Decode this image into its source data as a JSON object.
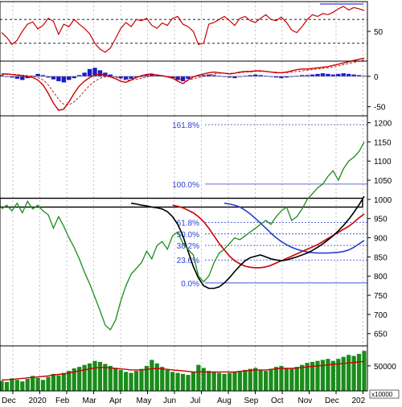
{
  "chart_data": {
    "type": "line",
    "x_labels": [
      "Dec",
      "2020",
      "Feb",
      "Mar",
      "Apr",
      "May",
      "Jun",
      "Jul",
      "Aug",
      "Sep",
      "Oct",
      "Nov",
      "Dec",
      "202"
    ],
    "panels": {
      "rsi": {
        "ticks": [
          50
        ],
        "ylim": [
          0,
          100
        ],
        "levels": [
          30,
          70
        ],
        "series": [
          {
            "values": [
              48,
              40,
              28,
              35,
              50,
              62,
              66,
              54,
              60,
              72,
              67,
              45,
              62,
              58,
              70,
              62,
              55,
              46,
              30,
              20,
              15,
              22,
              38,
              55,
              65,
              58,
              70,
              68,
              72,
              60,
              55,
              64,
              60,
              72,
              75,
              62,
              58,
              50,
              28,
              30,
              62,
              65,
              70,
              75,
              68,
              60,
              72,
              75,
              68,
              65,
              72,
              78,
              70,
              68,
              74,
              65,
              52,
              48,
              58,
              70,
              78,
              75,
              80,
              78,
              82,
              88,
              92,
              86,
              90,
              88,
              85
            ],
            "color": "#cc0000"
          }
        ],
        "upper_line_color": "#2a3fd0"
      },
      "macd": {
        "ticks": [
          0,
          -50
        ],
        "ylim": [
          -65,
          25
        ],
        "histogram": [
          2,
          0,
          -2,
          -4,
          -6,
          -3,
          1,
          4,
          2,
          -2,
          -5,
          -8,
          -10,
          -6,
          -3,
          2,
          6,
          12,
          14,
          10,
          6,
          3,
          -1,
          -3,
          -5,
          -4,
          -2,
          0,
          2,
          4,
          3,
          1,
          -1,
          -3,
          -6,
          -8,
          -4,
          -1,
          1,
          2,
          3,
          2,
          1,
          0,
          -2,
          -3,
          -1,
          1,
          2,
          3,
          2,
          1,
          -1,
          -2,
          -3,
          -2,
          -1,
          1,
          2,
          2,
          3,
          4,
          5,
          4,
          3,
          4,
          5,
          4,
          3,
          2,
          1
        ],
        "macd_line": [
          4,
          4,
          3,
          2,
          1,
          0,
          -2,
          -6,
          -14,
          -28,
          -44,
          -56,
          -54,
          -42,
          -28,
          -16,
          -8,
          -2,
          2,
          4,
          2,
          -1,
          -4,
          -8,
          -10,
          -6,
          -2,
          1,
          3,
          4,
          2,
          1,
          -1,
          -3,
          -8,
          -12,
          -6,
          -1,
          2,
          4,
          6,
          7,
          6,
          5,
          4,
          5,
          7,
          8,
          8,
          9,
          9,
          8,
          7,
          6,
          6,
          7,
          9,
          11,
          12,
          12,
          13,
          14,
          15,
          16,
          18,
          20,
          22,
          24,
          26,
          28,
          30
        ],
        "signal_line": [
          3,
          3,
          3,
          3,
          2,
          1,
          0,
          -2,
          -6,
          -14,
          -26,
          -38,
          -46,
          -47,
          -42,
          -34,
          -24,
          -15,
          -8,
          -3,
          -1,
          -1,
          -2,
          -4,
          -6,
          -6,
          -5,
          -3,
          -1,
          1,
          1,
          1,
          0,
          -1,
          -3,
          -6,
          -6,
          -4,
          -2,
          0,
          2,
          4,
          5,
          5,
          5,
          5,
          6,
          7,
          7,
          8,
          8,
          8,
          7,
          7,
          6,
          6,
          7,
          8,
          9,
          10,
          11,
          12,
          13,
          14,
          15,
          17,
          19,
          21,
          23,
          25,
          27
        ],
        "line_color": "#cc0000",
        "hist_color": "#1a1acc"
      },
      "price": {
        "ticks": [
          1200,
          1150,
          1100,
          1050,
          1000,
          950,
          900,
          850,
          800,
          750,
          700,
          650
        ],
        "ylim": [
          618,
          1218
        ],
        "close": [
          975,
          985,
          970,
          990,
          965,
          995,
          975,
          985,
          970,
          960,
          925,
          955,
          930,
          900,
          875,
          845,
          810,
          780,
          745,
          710,
          672,
          660,
          685,
          735,
          775,
          805,
          820,
          835,
          865,
          845,
          880,
          890,
          870,
          905,
          915,
          885,
          870,
          855,
          800,
          785,
          800,
          835,
          860,
          870,
          885,
          900,
          895,
          905,
          915,
          925,
          935,
          945,
          935,
          955,
          970,
          980,
          945,
          955,
          975,
          1000,
          1015,
          1030,
          1040,
          1060,
          1075,
          1050,
          1080,
          1100,
          1110,
          1125,
          1150
        ],
        "ma_black": [
          990,
          988,
          985,
          983,
          980,
          978,
          975,
          968,
          955,
          935,
          905,
          865,
          825,
          795,
          775,
          768,
          768,
          772,
          782,
          796,
          812,
          827,
          840,
          848,
          852,
          855,
          850,
          845,
          842,
          840,
          842,
          846,
          850,
          855,
          860,
          867,
          875,
          884,
          894,
          905,
          918,
          932,
          948,
          966,
          986,
          1008
        ],
        "ma_black_start_index": 25,
        "ma_red": [
          985,
          982,
          978,
          972,
          965,
          955,
          942,
          925,
          905,
          885,
          868,
          852,
          840,
          832,
          826,
          823,
          822,
          822,
          824,
          828,
          834,
          840,
          846,
          852,
          858,
          864,
          870,
          876,
          882,
          890,
          898,
          906,
          914,
          922,
          930,
          940,
          952,
          962
        ],
        "ma_red_start_index": 33,
        "ma_blue": [
          990,
          988,
          985,
          980,
          972,
          962,
          950,
          938,
          925,
          912,
          900,
          890,
          882,
          875,
          870,
          866,
          863,
          861,
          860,
          860,
          860,
          861,
          862,
          864,
          868,
          875,
          884,
          893
        ],
        "ma_blue_start_index": 43,
        "fib_levels": [
          {
            "label": "161.8%",
            "value": 1195
          },
          {
            "label": "100.0%",
            "value": 1040
          },
          {
            "label": "61.8%",
            "value": 940
          },
          {
            "label": "50.0%",
            "value": 910
          },
          {
            "label": "38.2%",
            "value": 880
          },
          {
            "label": "23.6%",
            "value": 842
          },
          {
            "label": "0.0%",
            "value": 782
          }
        ],
        "resistance_band": [
          980,
          1003
        ],
        "close_color": "#1a8c1a",
        "ma_colors": [
          "#000000",
          "#cc0000",
          "#2a3fd0"
        ],
        "fib_color": "#2a3fd0"
      },
      "volume": {
        "ticks": [
          50000
        ],
        "unit": "x10000",
        "ylim": [
          0,
          90000
        ],
        "values": [
          20000,
          18000,
          25000,
          22000,
          19000,
          24000,
          30000,
          26000,
          22000,
          28000,
          34000,
          31000,
          36000,
          40000,
          45000,
          48000,
          52000,
          55000,
          60000,
          58000,
          54000,
          50000,
          46000,
          42000,
          38000,
          36000,
          40000,
          44000,
          50000,
          62000,
          55000,
          48000,
          42000,
          38000,
          36000,
          34000,
          32000,
          38000,
          52000,
          46000,
          40000,
          38000,
          36000,
          34000,
          36000,
          38000,
          40000,
          42000,
          44000,
          46000,
          42000,
          40000,
          44000,
          48000,
          50000,
          46000,
          44000,
          48000,
          52000,
          56000,
          58000,
          60000,
          62000,
          64000,
          60000,
          64000,
          68000,
          72000,
          70000,
          74000,
          80000
        ],
        "ma": [
          22000,
          22000,
          23000,
          24000,
          25000,
          26000,
          27000,
          28000,
          29000,
          30000,
          32000,
          33000,
          34000,
          36000,
          38000,
          40000,
          42000,
          44000,
          46000,
          47000,
          47000,
          46000,
          45000,
          44000,
          43000,
          42000,
          42000,
          42000,
          43000,
          44000,
          45000,
          44000,
          43000,
          42000,
          41000,
          40000,
          39000,
          38000,
          38000,
          38000,
          38000,
          38000,
          38000,
          38000,
          38000,
          38000,
          39000,
          40000,
          41000,
          42000,
          42000,
          42000,
          43000,
          44000,
          45000,
          45000,
          45000,
          46000,
          47000,
          48000,
          49000,
          50000,
          51000,
          52000,
          53000,
          54000,
          55000,
          56000,
          57000,
          58000,
          59000
        ],
        "bar_color": "#1a8c1a",
        "ma_color": "#cc0000"
      }
    }
  }
}
